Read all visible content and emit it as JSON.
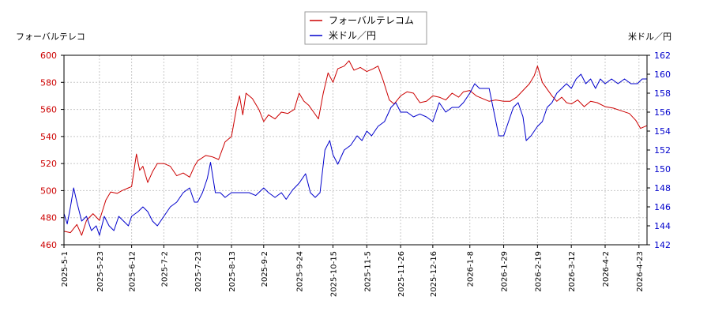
{
  "chart_data": {
    "type": "line",
    "left_axis_label": "フォーバルテレコ",
    "right_axis_label": "米ドル／円",
    "legend_position": "top-center",
    "grid": true,
    "x_ticks": [
      "2025-5-1",
      "2025-5-23",
      "2025-6-12",
      "2025-7-2",
      "2025-7-23",
      "2025-8-13",
      "2025-9-2",
      "2025-9-24",
      "2025-10-15",
      "2025-11-5",
      "2025-11-26",
      "2025-12-16",
      "2026-1-8",
      "2026-1-29",
      "2026-2-19",
      "2026-3-12",
      "2026-4-2",
      "2026-4-23"
    ],
    "x_range": [
      "2025-5-1",
      "2026-4-28"
    ],
    "left_ylim": [
      460,
      600
    ],
    "left_yticks": [
      460,
      480,
      500,
      520,
      540,
      560,
      580,
      600
    ],
    "right_ylim": [
      142,
      162
    ],
    "right_yticks": [
      142,
      144,
      146,
      148,
      150,
      152,
      154,
      156,
      158,
      160,
      162
    ],
    "series": [
      {
        "name": "フォーバルテレコム",
        "axis": "left",
        "color": "#cc0000",
        "points": [
          [
            "2025-5-1",
            470
          ],
          [
            "2025-5-5",
            469
          ],
          [
            "2025-5-9",
            475
          ],
          [
            "2025-5-12",
            467
          ],
          [
            "2025-5-15",
            478
          ],
          [
            "2025-5-19",
            483
          ],
          [
            "2025-5-23",
            478
          ],
          [
            "2025-5-27",
            493
          ],
          [
            "2025-5-30",
            499
          ],
          [
            "2025-6-3",
            498
          ],
          [
            "2025-6-6",
            500
          ],
          [
            "2025-6-10",
            502
          ],
          [
            "2025-6-12",
            503
          ],
          [
            "2025-6-15",
            527
          ],
          [
            "2025-6-17",
            515
          ],
          [
            "2025-6-19",
            518
          ],
          [
            "2025-6-22",
            506
          ],
          [
            "2025-6-25",
            514
          ],
          [
            "2025-6-28",
            520
          ],
          [
            "2025-7-2",
            520
          ],
          [
            "2025-7-6",
            518
          ],
          [
            "2025-7-10",
            511
          ],
          [
            "2025-7-14",
            513
          ],
          [
            "2025-7-18",
            510
          ],
          [
            "2025-7-21",
            518
          ],
          [
            "2025-7-23",
            522
          ],
          [
            "2025-7-28",
            526
          ],
          [
            "2025-8-1",
            525
          ],
          [
            "2025-8-5",
            523
          ],
          [
            "2025-8-9",
            536
          ],
          [
            "2025-8-13",
            540
          ],
          [
            "2025-8-16",
            560
          ],
          [
            "2025-8-18",
            570
          ],
          [
            "2025-8-20",
            556
          ],
          [
            "2025-8-22",
            572
          ],
          [
            "2025-8-26",
            568
          ],
          [
            "2025-8-30",
            560
          ],
          [
            "2025-9-2",
            551
          ],
          [
            "2025-9-5",
            556
          ],
          [
            "2025-9-9",
            553
          ],
          [
            "2025-9-13",
            558
          ],
          [
            "2025-9-17",
            557
          ],
          [
            "2025-9-21",
            560
          ],
          [
            "2025-9-24",
            572
          ],
          [
            "2025-9-27",
            566
          ],
          [
            "2025-9-30",
            563
          ],
          [
            "2025-10-3",
            558
          ],
          [
            "2025-10-6",
            553
          ],
          [
            "2025-10-9",
            572
          ],
          [
            "2025-10-12",
            587
          ],
          [
            "2025-10-15",
            580
          ],
          [
            "2025-10-18",
            590
          ],
          [
            "2025-10-22",
            592
          ],
          [
            "2025-10-25",
            596
          ],
          [
            "2025-10-28",
            589
          ],
          [
            "2025-11-1",
            591
          ],
          [
            "2025-11-5",
            588
          ],
          [
            "2025-11-9",
            590
          ],
          [
            "2025-11-12",
            592
          ],
          [
            "2025-11-15",
            582
          ],
          [
            "2025-11-19",
            567
          ],
          [
            "2025-11-22",
            564
          ],
          [
            "2025-11-26",
            570
          ],
          [
            "2025-11-30",
            573
          ],
          [
            "2025-12-4",
            572
          ],
          [
            "2025-12-8",
            565
          ],
          [
            "2025-12-12",
            566
          ],
          [
            "2025-12-16",
            570
          ],
          [
            "2025-12-20",
            569
          ],
          [
            "2025-12-24",
            567
          ],
          [
            "2025-12-28",
            572
          ],
          [
            "2026-1-1",
            569
          ],
          [
            "2026-1-4",
            573
          ],
          [
            "2026-1-8",
            574
          ],
          [
            "2026-1-12",
            570
          ],
          [
            "2026-1-16",
            568
          ],
          [
            "2026-1-20",
            566
          ],
          [
            "2026-1-24",
            567
          ],
          [
            "2026-1-29",
            566
          ],
          [
            "2026-2-2",
            566
          ],
          [
            "2026-2-6",
            569
          ],
          [
            "2026-2-10",
            574
          ],
          [
            "2026-2-14",
            579
          ],
          [
            "2026-2-17",
            585
          ],
          [
            "2026-2-19",
            592
          ],
          [
            "2026-2-22",
            580
          ],
          [
            "2026-2-25",
            575
          ],
          [
            "2026-2-28",
            570
          ],
          [
            "2026-3-3",
            566
          ],
          [
            "2026-3-6",
            569
          ],
          [
            "2026-3-9",
            565
          ],
          [
            "2026-3-12",
            564
          ],
          [
            "2026-3-16",
            567
          ],
          [
            "2026-3-20",
            562
          ],
          [
            "2026-3-24",
            566
          ],
          [
            "2026-3-28",
            565
          ],
          [
            "2026-4-2",
            562
          ],
          [
            "2026-4-7",
            561
          ],
          [
            "2026-4-12",
            559
          ],
          [
            "2026-4-17",
            557
          ],
          [
            "2026-4-21",
            552
          ],
          [
            "2026-4-24",
            546
          ],
          [
            "2026-4-28",
            548
          ]
        ]
      },
      {
        "name": "米ドル／円",
        "axis": "right",
        "color": "#0000cc",
        "points": [
          [
            "2025-5-1",
            145.3
          ],
          [
            "2025-5-3",
            144.2
          ],
          [
            "2025-5-5",
            146.0
          ],
          [
            "2025-5-7",
            148.0
          ],
          [
            "2025-5-9",
            146.5
          ],
          [
            "2025-5-12",
            144.5
          ],
          [
            "2025-5-15",
            145.0
          ],
          [
            "2025-5-18",
            143.5
          ],
          [
            "2025-5-21",
            144.0
          ],
          [
            "2025-5-23",
            143.0
          ],
          [
            "2025-5-26",
            145.0
          ],
          [
            "2025-5-29",
            144.0
          ],
          [
            "2025-6-1",
            143.5
          ],
          [
            "2025-6-4",
            145.0
          ],
          [
            "2025-6-7",
            144.5
          ],
          [
            "2025-6-10",
            144.0
          ],
          [
            "2025-6-12",
            145.0
          ],
          [
            "2025-6-16",
            145.5
          ],
          [
            "2025-6-19",
            146.0
          ],
          [
            "2025-6-22",
            145.5
          ],
          [
            "2025-6-25",
            144.5
          ],
          [
            "2025-6-28",
            144.0
          ],
          [
            "2025-7-2",
            145.0
          ],
          [
            "2025-7-6",
            146.0
          ],
          [
            "2025-7-10",
            146.5
          ],
          [
            "2025-7-14",
            147.5
          ],
          [
            "2025-7-18",
            148.0
          ],
          [
            "2025-7-21",
            146.5
          ],
          [
            "2025-7-23",
            146.5
          ],
          [
            "2025-7-26",
            147.5
          ],
          [
            "2025-7-29",
            149.0
          ],
          [
            "2025-7-31",
            150.7
          ],
          [
            "2025-8-3",
            147.5
          ],
          [
            "2025-8-6",
            147.5
          ],
          [
            "2025-8-9",
            147.0
          ],
          [
            "2025-8-13",
            147.5
          ],
          [
            "2025-8-16",
            147.5
          ],
          [
            "2025-8-20",
            147.5
          ],
          [
            "2025-8-24",
            147.5
          ],
          [
            "2025-8-28",
            147.2
          ],
          [
            "2025-9-2",
            148.0
          ],
          [
            "2025-9-5",
            147.5
          ],
          [
            "2025-9-9",
            147.0
          ],
          [
            "2025-9-13",
            147.5
          ],
          [
            "2025-9-16",
            146.8
          ],
          [
            "2025-9-20",
            147.8
          ],
          [
            "2025-9-24",
            148.5
          ],
          [
            "2025-9-28",
            149.5
          ],
          [
            "2025-10-1",
            147.5
          ],
          [
            "2025-10-4",
            147.0
          ],
          [
            "2025-10-7",
            147.5
          ],
          [
            "2025-10-10",
            152.0
          ],
          [
            "2025-10-13",
            153.0
          ],
          [
            "2025-10-15",
            151.5
          ],
          [
            "2025-10-18",
            150.5
          ],
          [
            "2025-10-22",
            152.0
          ],
          [
            "2025-10-26",
            152.5
          ],
          [
            "2025-10-30",
            153.5
          ],
          [
            "2025-11-2",
            153.0
          ],
          [
            "2025-11-5",
            154.0
          ],
          [
            "2025-11-8",
            153.5
          ],
          [
            "2025-11-12",
            154.5
          ],
          [
            "2025-11-16",
            155.0
          ],
          [
            "2025-11-20",
            156.5
          ],
          [
            "2025-11-23",
            157.0
          ],
          [
            "2025-11-26",
            156.0
          ],
          [
            "2025-11-30",
            156.0
          ],
          [
            "2025-12-4",
            155.5
          ],
          [
            "2025-12-8",
            155.8
          ],
          [
            "2025-12-12",
            155.5
          ],
          [
            "2025-12-16",
            155.0
          ],
          [
            "2025-12-20",
            157.0
          ],
          [
            "2025-12-24",
            156.0
          ],
          [
            "2025-12-28",
            156.5
          ],
          [
            "2026-1-1",
            156.5
          ],
          [
            "2026-1-4",
            157.0
          ],
          [
            "2026-1-8",
            158.0
          ],
          [
            "2026-1-11",
            159.0
          ],
          [
            "2026-1-14",
            158.5
          ],
          [
            "2026-1-17",
            158.5
          ],
          [
            "2026-1-20",
            158.5
          ],
          [
            "2026-1-23",
            156.0
          ],
          [
            "2026-1-26",
            153.5
          ],
          [
            "2026-1-29",
            153.5
          ],
          [
            "2026-2-1",
            155.0
          ],
          [
            "2026-2-4",
            156.5
          ],
          [
            "2026-2-7",
            157.0
          ],
          [
            "2026-2-10",
            155.5
          ],
          [
            "2026-2-12",
            153.0
          ],
          [
            "2026-2-15",
            153.5
          ],
          [
            "2026-2-19",
            154.5
          ],
          [
            "2026-2-22",
            155.0
          ],
          [
            "2026-2-25",
            156.5
          ],
          [
            "2026-2-28",
            157.0
          ],
          [
            "2026-3-3",
            158.0
          ],
          [
            "2026-3-6",
            158.5
          ],
          [
            "2026-3-9",
            159.0
          ],
          [
            "2026-3-12",
            158.5
          ],
          [
            "2026-3-15",
            159.5
          ],
          [
            "2026-3-18",
            160.0
          ],
          [
            "2026-3-21",
            159.0
          ],
          [
            "2026-3-24",
            159.5
          ],
          [
            "2026-3-27",
            158.5
          ],
          [
            "2026-3-30",
            159.5
          ],
          [
            "2026-4-2",
            159.0
          ],
          [
            "2026-4-6",
            159.5
          ],
          [
            "2026-4-10",
            159.0
          ],
          [
            "2026-4-14",
            159.5
          ],
          [
            "2026-4-18",
            159.0
          ],
          [
            "2026-4-22",
            159.0
          ],
          [
            "2026-4-25",
            159.5
          ],
          [
            "2026-4-28",
            159.5
          ]
        ]
      }
    ]
  }
}
